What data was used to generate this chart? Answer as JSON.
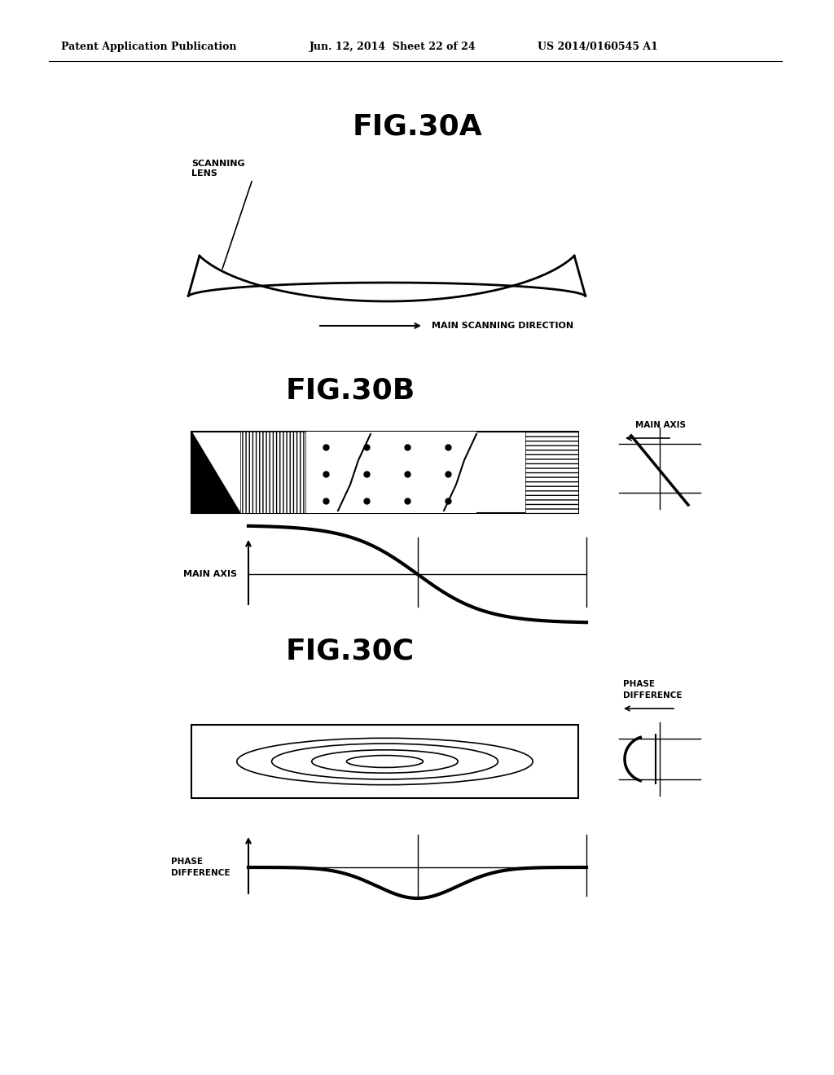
{
  "bg_color": "#ffffff",
  "header_left": "Patent Application Publication",
  "header_mid": "Jun. 12, 2014  Sheet 22 of 24",
  "header_right": "US 2014/0160545 A1",
  "fig30a_title": "FIG.30A",
  "fig30b_title": "FIG.30B",
  "fig30c_title": "FIG.30C",
  "scanning_lens_label": "SCANNING\nLENS",
  "main_scanning_dir_label": "MAIN SCANNING DIRECTION",
  "main_axis_label": "MAIN AXIS",
  "phase_diff_label": "PHASE\nDIFFERENCE"
}
